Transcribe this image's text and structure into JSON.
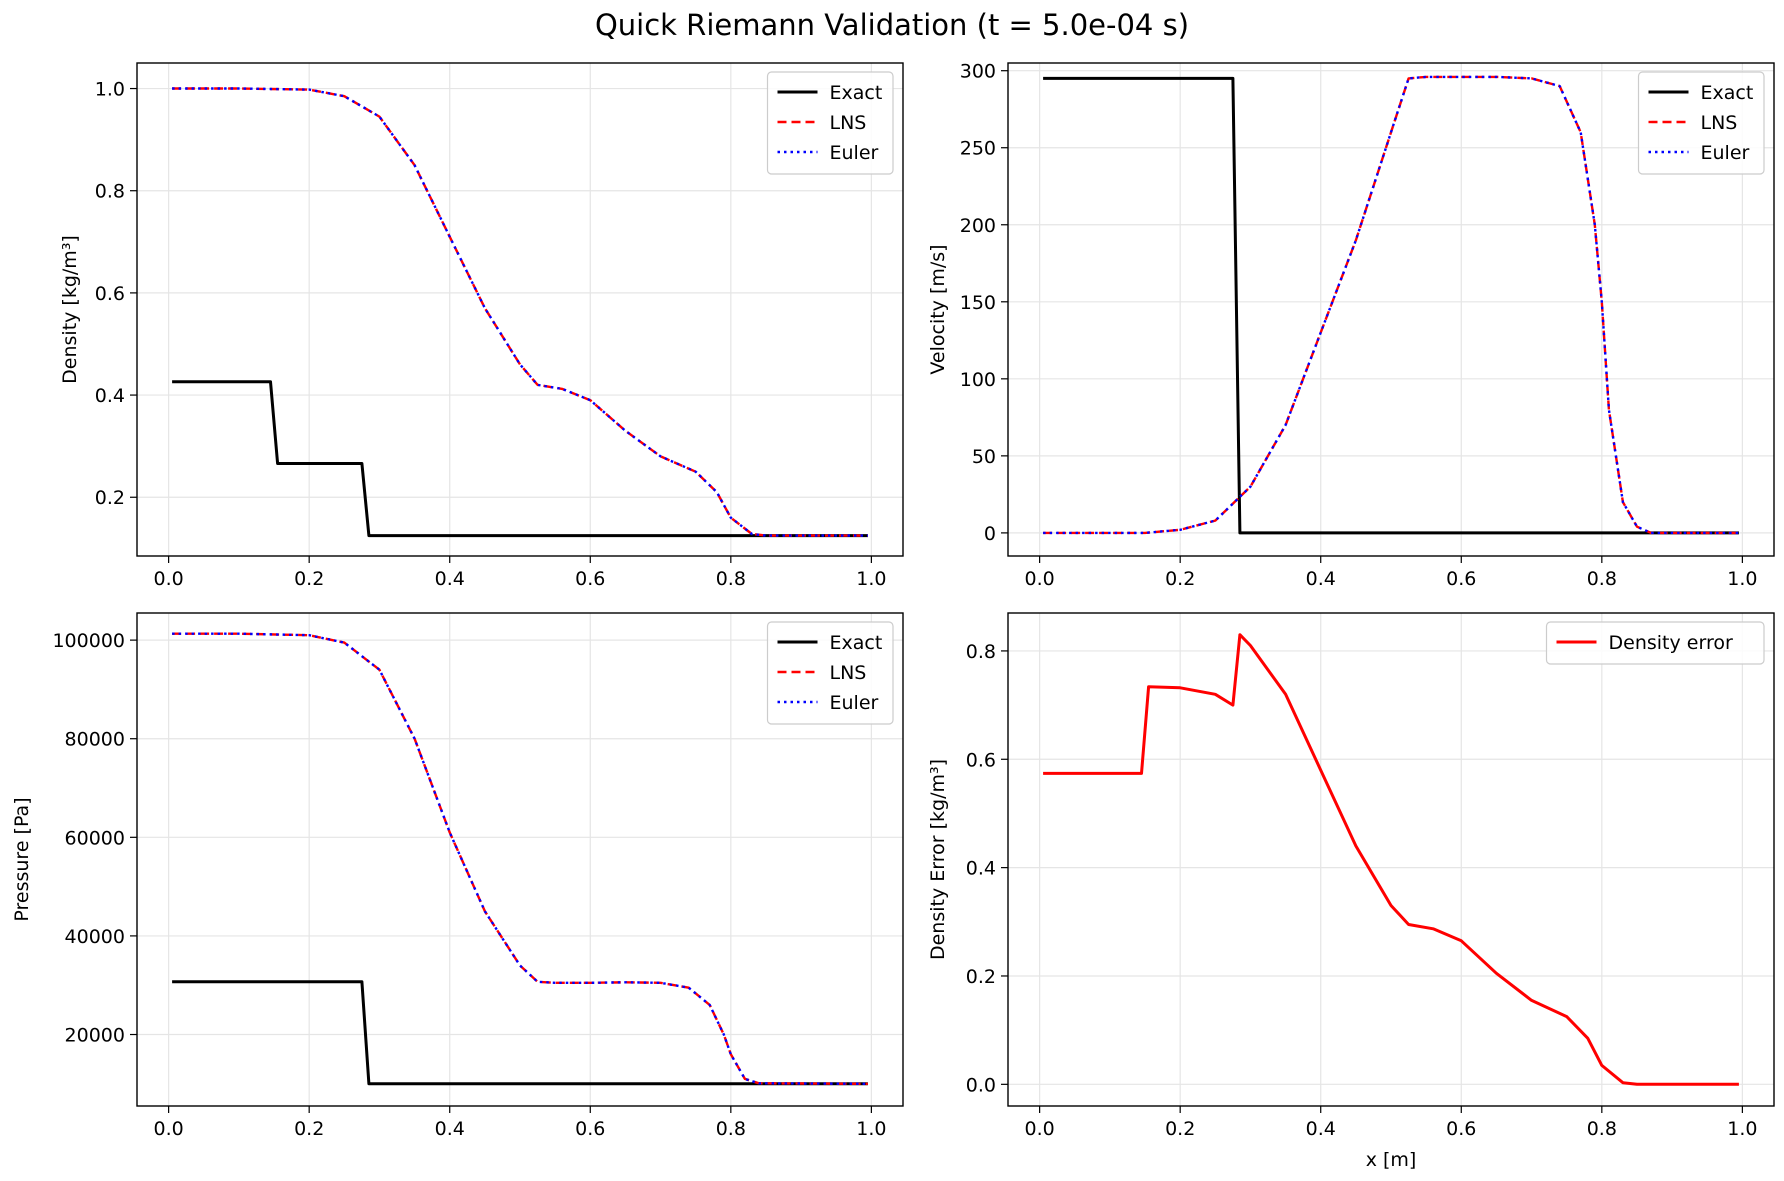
{
  "figure": {
    "title": "Quick Riemann Validation (t = 5.0e-04 s)"
  },
  "colors": {
    "exact": "#000000",
    "lns": "#ff0000",
    "euler": "#0000ff",
    "error": "#ff0000",
    "grid": "#e5e5e5"
  },
  "chart_data": [
    {
      "type": "line",
      "ylabel": "Density [kg/m³]",
      "xlabel": "",
      "xlim": [
        -0.045,
        1.045
      ],
      "ylim": [
        0.085,
        1.05
      ],
      "xticks": [
        0.0,
        0.2,
        0.4,
        0.6,
        0.8,
        1.0
      ],
      "xtick_labels": [
        "0.0",
        "0.2",
        "0.4",
        "0.6",
        "0.8",
        "1.0"
      ],
      "yticks": [
        0.2,
        0.4,
        0.6,
        0.8,
        1.0
      ],
      "ytick_labels": [
        "0.2",
        "0.4",
        "0.6",
        "0.8",
        "1.0"
      ],
      "grid": true,
      "legend_position": "top-right",
      "series": [
        {
          "name": "Exact",
          "style": "solid",
          "color": "#000000",
          "x": [
            0.005,
            0.145,
            0.155,
            0.275,
            0.285,
            0.995
          ],
          "y": [
            0.426,
            0.426,
            0.266,
            0.266,
            0.125,
            0.125
          ]
        },
        {
          "name": "LNS",
          "style": "dashed",
          "color": "#ff0000",
          "x": [
            0.005,
            0.1,
            0.2,
            0.25,
            0.3,
            0.35,
            0.4,
            0.45,
            0.5,
            0.525,
            0.56,
            0.6,
            0.65,
            0.7,
            0.75,
            0.78,
            0.8,
            0.83,
            0.85,
            0.995
          ],
          "y": [
            1.0,
            1.0,
            0.998,
            0.985,
            0.945,
            0.85,
            0.71,
            0.57,
            0.46,
            0.42,
            0.412,
            0.39,
            0.33,
            0.28,
            0.25,
            0.21,
            0.16,
            0.128,
            0.125,
            0.125
          ]
        },
        {
          "name": "Euler",
          "style": "dotted",
          "color": "#0000ff",
          "x": [
            0.005,
            0.1,
            0.2,
            0.25,
            0.3,
            0.35,
            0.4,
            0.45,
            0.5,
            0.525,
            0.56,
            0.6,
            0.65,
            0.7,
            0.75,
            0.78,
            0.8,
            0.83,
            0.85,
            0.995
          ],
          "y": [
            1.0,
            1.0,
            0.998,
            0.985,
            0.945,
            0.85,
            0.71,
            0.57,
            0.46,
            0.42,
            0.412,
            0.39,
            0.33,
            0.28,
            0.25,
            0.21,
            0.16,
            0.128,
            0.125,
            0.125
          ]
        }
      ]
    },
    {
      "type": "line",
      "ylabel": "Velocity [m/s]",
      "xlabel": "",
      "xlim": [
        -0.045,
        1.045
      ],
      "ylim": [
        -15,
        305
      ],
      "xticks": [
        0.0,
        0.2,
        0.4,
        0.6,
        0.8,
        1.0
      ],
      "xtick_labels": [
        "0.0",
        "0.2",
        "0.4",
        "0.6",
        "0.8",
        "1.0"
      ],
      "yticks": [
        0,
        50,
        100,
        150,
        200,
        250,
        300
      ],
      "ytick_labels": [
        "0",
        "50",
        "100",
        "150",
        "200",
        "250",
        "300"
      ],
      "grid": true,
      "legend_position": "top-right",
      "series": [
        {
          "name": "Exact",
          "style": "solid",
          "color": "#000000",
          "x": [
            0.005,
            0.275,
            0.285,
            0.995
          ],
          "y": [
            295,
            295,
            0,
            0
          ]
        },
        {
          "name": "LNS",
          "style": "dashed",
          "color": "#ff0000",
          "x": [
            0.005,
            0.15,
            0.2,
            0.25,
            0.3,
            0.35,
            0.4,
            0.45,
            0.5,
            0.525,
            0.55,
            0.6,
            0.65,
            0.7,
            0.74,
            0.77,
            0.79,
            0.8,
            0.81,
            0.83,
            0.85,
            0.87,
            0.995
          ],
          "y": [
            0,
            0,
            2,
            8,
            30,
            70,
            130,
            190,
            260,
            295,
            296,
            296,
            296,
            295,
            290,
            260,
            200,
            150,
            80,
            20,
            4,
            0,
            0
          ]
        },
        {
          "name": "Euler",
          "style": "dotted",
          "color": "#0000ff",
          "x": [
            0.005,
            0.15,
            0.2,
            0.25,
            0.3,
            0.35,
            0.4,
            0.45,
            0.5,
            0.525,
            0.55,
            0.6,
            0.65,
            0.7,
            0.74,
            0.77,
            0.79,
            0.8,
            0.81,
            0.83,
            0.85,
            0.87,
            0.995
          ],
          "y": [
            0,
            0,
            2,
            8,
            30,
            70,
            130,
            190,
            260,
            295,
            296,
            296,
            296,
            295,
            290,
            260,
            200,
            150,
            80,
            20,
            4,
            0,
            0
          ]
        }
      ]
    },
    {
      "type": "line",
      "ylabel": "Pressure [Pa]",
      "xlabel": "",
      "xlim": [
        -0.045,
        1.045
      ],
      "ylim": [
        5500,
        105500
      ],
      "xticks": [
        0.0,
        0.2,
        0.4,
        0.6,
        0.8,
        1.0
      ],
      "xtick_labels": [
        "0.0",
        "0.2",
        "0.4",
        "0.6",
        "0.8",
        "1.0"
      ],
      "yticks": [
        20000,
        40000,
        60000,
        80000,
        100000
      ],
      "ytick_labels": [
        "20000",
        "40000",
        "60000",
        "80000",
        "100000"
      ],
      "grid": true,
      "legend_position": "top-right",
      "series": [
        {
          "name": "Exact",
          "style": "solid",
          "color": "#000000",
          "x": [
            0.005,
            0.275,
            0.285,
            0.995
          ],
          "y": [
            30700,
            30700,
            10000,
            10000
          ]
        },
        {
          "name": "LNS",
          "style": "dashed",
          "color": "#ff0000",
          "x": [
            0.005,
            0.1,
            0.2,
            0.25,
            0.3,
            0.35,
            0.4,
            0.45,
            0.5,
            0.525,
            0.55,
            0.6,
            0.65,
            0.7,
            0.74,
            0.77,
            0.79,
            0.8,
            0.82,
            0.84,
            0.995
          ],
          "y": [
            101300,
            101300,
            101000,
            99500,
            94000,
            80000,
            61000,
            45000,
            34000,
            30700,
            30500,
            30500,
            30600,
            30500,
            29500,
            26000,
            20000,
            16000,
            11000,
            10100,
            10000
          ]
        },
        {
          "name": "Euler",
          "style": "dotted",
          "color": "#0000ff",
          "x": [
            0.005,
            0.1,
            0.2,
            0.25,
            0.3,
            0.35,
            0.4,
            0.45,
            0.5,
            0.525,
            0.55,
            0.6,
            0.65,
            0.7,
            0.74,
            0.77,
            0.79,
            0.8,
            0.82,
            0.84,
            0.995
          ],
          "y": [
            101300,
            101300,
            101000,
            99500,
            94000,
            80000,
            61000,
            45000,
            34000,
            30700,
            30500,
            30500,
            30600,
            30500,
            29500,
            26000,
            20000,
            16000,
            11000,
            10100,
            10000
          ]
        }
      ]
    },
    {
      "type": "line",
      "ylabel": "Density Error [kg/m³]",
      "xlabel": "x [m]",
      "xlim": [
        -0.045,
        1.045
      ],
      "ylim": [
        -0.04,
        0.87
      ],
      "xticks": [
        0.0,
        0.2,
        0.4,
        0.6,
        0.8,
        1.0
      ],
      "xtick_labels": [
        "0.0",
        "0.2",
        "0.4",
        "0.6",
        "0.8",
        "1.0"
      ],
      "yticks": [
        0.0,
        0.2,
        0.4,
        0.6,
        0.8
      ],
      "ytick_labels": [
        "0.0",
        "0.2",
        "0.4",
        "0.6",
        "0.8"
      ],
      "grid": true,
      "legend_position": "top-right",
      "series": [
        {
          "name": "Density error",
          "style": "solid",
          "color": "#ff0000",
          "x": [
            0.005,
            0.145,
            0.155,
            0.2,
            0.25,
            0.275,
            0.285,
            0.3,
            0.35,
            0.4,
            0.45,
            0.5,
            0.525,
            0.56,
            0.6,
            0.65,
            0.7,
            0.75,
            0.78,
            0.8,
            0.83,
            0.85,
            0.995
          ],
          "y": [
            0.574,
            0.574,
            0.734,
            0.732,
            0.72,
            0.7,
            0.83,
            0.81,
            0.72,
            0.58,
            0.44,
            0.33,
            0.295,
            0.287,
            0.265,
            0.205,
            0.155,
            0.125,
            0.085,
            0.035,
            0.003,
            0.0,
            0.0
          ]
        }
      ]
    }
  ]
}
